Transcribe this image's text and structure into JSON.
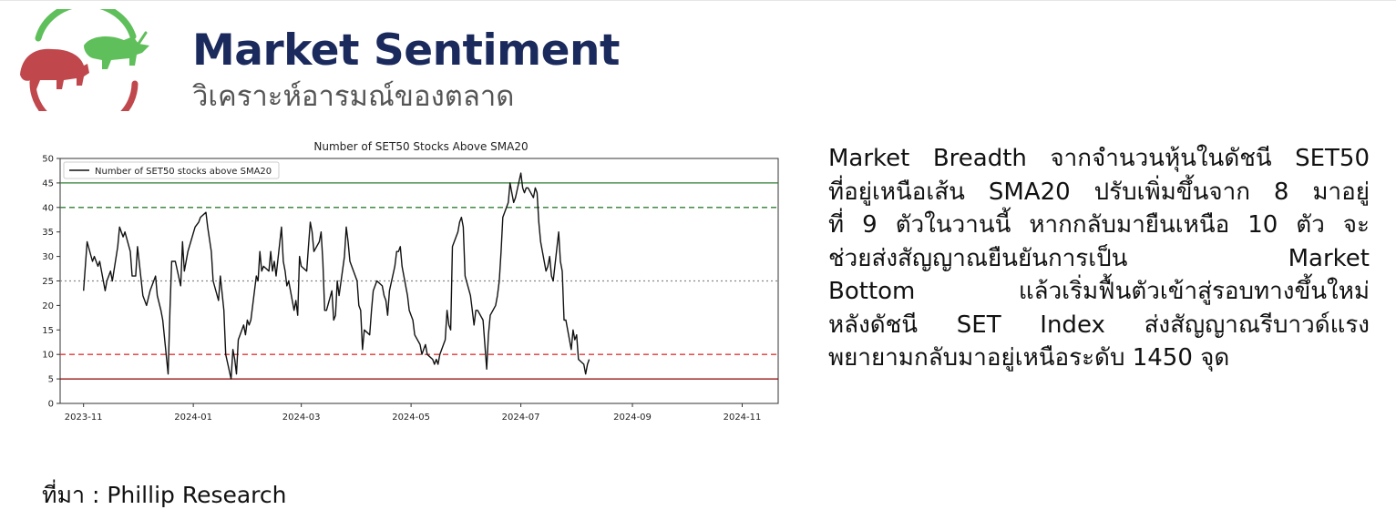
{
  "header": {
    "title": "Market Sentiment",
    "subtitle": "วิเคราะห์อารมณ์ของตลาด",
    "logo_icon": "bull-bear-logo-icon",
    "colors": {
      "title": "#1b2a5c",
      "bear": "#c0474c",
      "bull": "#5fbf5a"
    }
  },
  "commentary": {
    "lines": [
      "Market Breadth จากจำนวนหุ้นในดัชนี SET50",
      "ที่อยู่เหนือเส้น SMA20 ปรับเพิ่มขึ้นจาก 8 มาอยู่",
      "ที่ 9 ตัวในวานนี้ หากกลับมายืนเหนือ 10 ตัว จะ",
      "ช่วยส่งสัญญาณยืนยันการเป็น Market",
      "Bottom แล้วเริ่มฟื้นตัวเข้าสู่รอบทางขึ้นใหม่",
      "หลังดัชนี SET Index ส่งสัญญาณรีบาวด์แรง",
      "พยายามกลับมาอยู่เหนือระดับ 1450 จุด"
    ]
  },
  "source": "ที่มา : Phillip Research",
  "chart_data": {
    "type": "line",
    "title": "Number of SET50 Stocks Above SMA20",
    "legend": {
      "placement": "top-left",
      "entries": [
        "Number of SET50 stocks above SMA20"
      ]
    },
    "xlabel": "",
    "ylabel": "",
    "ylim": [
      0,
      50
    ],
    "yticks": [
      0,
      5,
      10,
      15,
      20,
      25,
      30,
      35,
      40,
      45,
      50
    ],
    "xlim": [
      "2023-10-19",
      "2024-11-21"
    ],
    "xticks": [
      "2023-11-01",
      "2024-01-01",
      "2024-03-01",
      "2024-05-01",
      "2024-07-01",
      "2024-09-01",
      "2024-11-01"
    ],
    "xtick_labels": [
      "2023-11",
      "2024-01",
      "2024-03",
      "2024-05",
      "2024-07",
      "2024-09",
      "2024-11"
    ],
    "grid": false,
    "reference_lines": [
      {
        "y": 45,
        "style": "solid",
        "color": "#2e7d32"
      },
      {
        "y": 40,
        "style": "dashed",
        "color": "#2e7d32"
      },
      {
        "y": 25,
        "style": "dotted",
        "color": "#888888"
      },
      {
        "y": 10,
        "style": "dashed",
        "color": "#e53935"
      },
      {
        "y": 5,
        "style": "solid",
        "color": "#8b0000"
      }
    ],
    "series": [
      {
        "name": "Number of SET50 stocks above SMA20",
        "color": "#111111",
        "points": [
          [
            "2023-11-01",
            23
          ],
          [
            "2023-11-03",
            33
          ],
          [
            "2023-11-06",
            29
          ],
          [
            "2023-11-07",
            30
          ],
          [
            "2023-11-09",
            28
          ],
          [
            "2023-11-10",
            29
          ],
          [
            "2023-11-13",
            23
          ],
          [
            "2023-11-14",
            25
          ],
          [
            "2023-11-16",
            27
          ],
          [
            "2023-11-17",
            25
          ],
          [
            "2023-11-20",
            32
          ],
          [
            "2023-11-21",
            36
          ],
          [
            "2023-11-23",
            34
          ],
          [
            "2023-11-24",
            35
          ],
          [
            "2023-11-27",
            31
          ],
          [
            "2023-11-28",
            26
          ],
          [
            "2023-11-30",
            26
          ],
          [
            "2023-12-01",
            32
          ],
          [
            "2023-12-04",
            22
          ],
          [
            "2023-12-06",
            20
          ],
          [
            "2023-12-08",
            23
          ],
          [
            "2023-12-11",
            26
          ],
          [
            "2023-12-12",
            22
          ],
          [
            "2023-12-14",
            19
          ],
          [
            "2023-12-15",
            17
          ],
          [
            "2023-12-18",
            6
          ],
          [
            "2023-12-19",
            19
          ],
          [
            "2023-12-20",
            29
          ],
          [
            "2023-12-22",
            29
          ],
          [
            "2023-12-25",
            24
          ],
          [
            "2023-12-26",
            33
          ],
          [
            "2023-12-27",
            27
          ],
          [
            "2023-12-29",
            31
          ],
          [
            "2024-01-02",
            36
          ],
          [
            "2024-01-04",
            37
          ],
          [
            "2024-01-05",
            38
          ],
          [
            "2024-01-08",
            39
          ],
          [
            "2024-01-09",
            36
          ],
          [
            "2024-01-11",
            31
          ],
          [
            "2024-01-12",
            25
          ],
          [
            "2024-01-15",
            21
          ],
          [
            "2024-01-16",
            26
          ],
          [
            "2024-01-18",
            19
          ],
          [
            "2024-01-19",
            10
          ],
          [
            "2024-01-22",
            5
          ],
          [
            "2024-01-23",
            11
          ],
          [
            "2024-01-24",
            9
          ],
          [
            "2024-01-25",
            6
          ],
          [
            "2024-01-26",
            13
          ],
          [
            "2024-01-29",
            16
          ],
          [
            "2024-01-30",
            14
          ],
          [
            "2024-01-31",
            17
          ],
          [
            "2024-02-01",
            16
          ],
          [
            "2024-02-02",
            17
          ],
          [
            "2024-02-05",
            26
          ],
          [
            "2024-02-06",
            25
          ],
          [
            "2024-02-07",
            31
          ],
          [
            "2024-02-08",
            27
          ],
          [
            "2024-02-09",
            28
          ],
          [
            "2024-02-12",
            27
          ],
          [
            "2024-02-13",
            31
          ],
          [
            "2024-02-14",
            27
          ],
          [
            "2024-02-15",
            29
          ],
          [
            "2024-02-16",
            26
          ],
          [
            "2024-02-19",
            36
          ],
          [
            "2024-02-20",
            29
          ],
          [
            "2024-02-21",
            27
          ],
          [
            "2024-02-22",
            24
          ],
          [
            "2024-02-23",
            25
          ],
          [
            "2024-02-26",
            19
          ],
          [
            "2024-02-27",
            21
          ],
          [
            "2024-02-28",
            18
          ],
          [
            "2024-02-29",
            30
          ],
          [
            "2024-03-01",
            28
          ],
          [
            "2024-03-04",
            27
          ],
          [
            "2024-03-05",
            32
          ],
          [
            "2024-03-06",
            37
          ],
          [
            "2024-03-07",
            35
          ],
          [
            "2024-03-08",
            31
          ],
          [
            "2024-03-11",
            33
          ],
          [
            "2024-03-12",
            35
          ],
          [
            "2024-03-13",
            29
          ],
          [
            "2024-03-14",
            19
          ],
          [
            "2024-03-15",
            19
          ],
          [
            "2024-03-18",
            23
          ],
          [
            "2024-03-19",
            17
          ],
          [
            "2024-03-20",
            18
          ],
          [
            "2024-03-21",
            25
          ],
          [
            "2024-03-22",
            22
          ],
          [
            "2024-03-25",
            30
          ],
          [
            "2024-03-26",
            36
          ],
          [
            "2024-03-27",
            33
          ],
          [
            "2024-03-28",
            29
          ],
          [
            "2024-04-01",
            25
          ],
          [
            "2024-04-02",
            20
          ],
          [
            "2024-04-03",
            19
          ],
          [
            "2024-04-04",
            11
          ],
          [
            "2024-04-05",
            15
          ],
          [
            "2024-04-08",
            14
          ],
          [
            "2024-04-09",
            19
          ],
          [
            "2024-04-10",
            23
          ],
          [
            "2024-04-11",
            24
          ],
          [
            "2024-04-12",
            25
          ],
          [
            "2024-04-15",
            24
          ],
          [
            "2024-04-16",
            22
          ],
          [
            "2024-04-17",
            21
          ],
          [
            "2024-04-18",
            18
          ],
          [
            "2024-04-19",
            23
          ],
          [
            "2024-04-22",
            28
          ],
          [
            "2024-04-23",
            31
          ],
          [
            "2024-04-24",
            31
          ],
          [
            "2024-04-25",
            32
          ],
          [
            "2024-04-26",
            28
          ],
          [
            "2024-04-29",
            22
          ],
          [
            "2024-04-30",
            19
          ],
          [
            "2024-05-01",
            18
          ],
          [
            "2024-05-02",
            17
          ],
          [
            "2024-05-03",
            14
          ],
          [
            "2024-05-06",
            12
          ],
          [
            "2024-05-07",
            10
          ],
          [
            "2024-05-08",
            11
          ],
          [
            "2024-05-09",
            12
          ],
          [
            "2024-05-10",
            10
          ],
          [
            "2024-05-13",
            9
          ],
          [
            "2024-05-14",
            8
          ],
          [
            "2024-05-15",
            9
          ],
          [
            "2024-05-16",
            8
          ],
          [
            "2024-05-17",
            10
          ],
          [
            "2024-05-20",
            13
          ],
          [
            "2024-05-21",
            19
          ],
          [
            "2024-05-22",
            16
          ],
          [
            "2024-05-23",
            15
          ],
          [
            "2024-05-24",
            32
          ],
          [
            "2024-05-27",
            35
          ],
          [
            "2024-05-28",
            37
          ],
          [
            "2024-05-29",
            38
          ],
          [
            "2024-05-30",
            36
          ],
          [
            "2024-05-31",
            26
          ],
          [
            "2024-06-03",
            22
          ],
          [
            "2024-06-04",
            19
          ],
          [
            "2024-06-05",
            16
          ],
          [
            "2024-06-06",
            19
          ],
          [
            "2024-06-07",
            19
          ],
          [
            "2024-06-10",
            17
          ],
          [
            "2024-06-11",
            12
          ],
          [
            "2024-06-12",
            7
          ],
          [
            "2024-06-13",
            14
          ],
          [
            "2024-06-14",
            18
          ],
          [
            "2024-06-17",
            20
          ],
          [
            "2024-06-18",
            22
          ],
          [
            "2024-06-19",
            25
          ],
          [
            "2024-06-20",
            31
          ],
          [
            "2024-06-21",
            38
          ],
          [
            "2024-06-24",
            41
          ],
          [
            "2024-06-25",
            45
          ],
          [
            "2024-06-26",
            43
          ],
          [
            "2024-06-27",
            41
          ],
          [
            "2024-06-28",
            42
          ],
          [
            "2024-07-01",
            47
          ],
          [
            "2024-07-02",
            44
          ],
          [
            "2024-07-03",
            43
          ],
          [
            "2024-07-04",
            44
          ],
          [
            "2024-07-05",
            44
          ],
          [
            "2024-07-08",
            42
          ],
          [
            "2024-07-09",
            44
          ],
          [
            "2024-07-10",
            43
          ],
          [
            "2024-07-11",
            37
          ],
          [
            "2024-07-12",
            33
          ],
          [
            "2024-07-15",
            27
          ],
          [
            "2024-07-16",
            28
          ],
          [
            "2024-07-17",
            30
          ],
          [
            "2024-07-18",
            26
          ],
          [
            "2024-07-19",
            25
          ],
          [
            "2024-07-22",
            35
          ],
          [
            "2024-07-23",
            29
          ],
          [
            "2024-07-24",
            27
          ],
          [
            "2024-07-25",
            17
          ],
          [
            "2024-07-26",
            17
          ],
          [
            "2024-07-29",
            11
          ],
          [
            "2024-07-30",
            15
          ],
          [
            "2024-07-31",
            13
          ],
          [
            "2024-08-01",
            14
          ],
          [
            "2024-08-02",
            9
          ],
          [
            "2024-08-05",
            8
          ],
          [
            "2024-08-06",
            6
          ],
          [
            "2024-08-07",
            8
          ],
          [
            "2024-08-08",
            9
          ]
        ]
      }
    ]
  }
}
